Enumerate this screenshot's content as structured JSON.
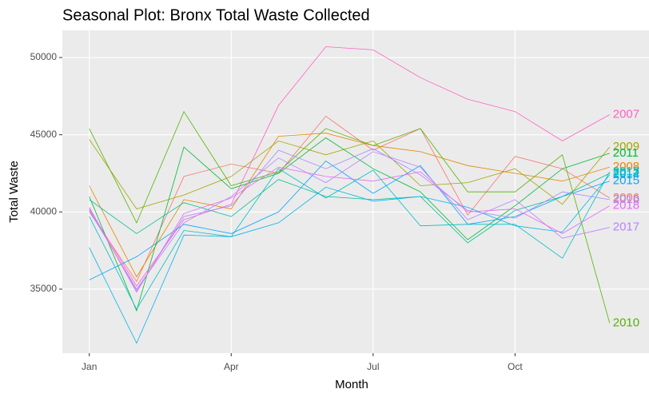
{
  "chart_data": {
    "type": "line",
    "title": "Seasonal Plot: Bronx Total Waste Collected",
    "x_label": "Month",
    "y_label": "Total Waste",
    "x": [
      1,
      2,
      3,
      4,
      5,
      6,
      7,
      8,
      9,
      10,
      11,
      12
    ],
    "xlim": [
      0.43,
      12.68
    ],
    "xticks": [
      {
        "value": 1,
        "label": "Jan"
      },
      {
        "value": 4,
        "label": "Apr"
      },
      {
        "value": 7,
        "label": "Jul"
      },
      {
        "value": 10,
        "label": "Oct"
      }
    ],
    "ylim": [
      30860,
      51760
    ],
    "yticks": [
      35000,
      40000,
      45000,
      50000
    ],
    "grid": true,
    "series": [
      {
        "name": "2006",
        "color": "#F8766D",
        "values": [
          40000,
          35500,
          42300,
          43100,
          42500,
          46200,
          44000,
          45400,
          39800,
          43600,
          42800,
          40900
        ]
      },
      {
        "name": "2007",
        "color": "#FF61C3",
        "values": [
          40200,
          35200,
          39500,
          40500,
          46900,
          50700,
          50500,
          48700,
          47300,
          46500,
          44600,
          46300
        ]
      },
      {
        "name": "2008",
        "color": "#E58700",
        "values": [
          41700,
          35800,
          40800,
          40200,
          44900,
          45100,
          44300,
          43900,
          43000,
          42500,
          42000,
          42900
        ]
      },
      {
        "name": "2009",
        "color": "#A3A500",
        "values": [
          44700,
          40200,
          41100,
          42300,
          44600,
          43700,
          44600,
          41700,
          41900,
          42800,
          40500,
          44200
        ]
      },
      {
        "name": "2010",
        "color": "#53B400",
        "values": [
          45400,
          39300,
          46500,
          41700,
          42600,
          45400,
          44300,
          45400,
          41300,
          41300,
          43700,
          32800
        ]
      },
      {
        "name": "2011",
        "color": "#00BA38",
        "values": [
          41000,
          33600,
          44200,
          41500,
          42500,
          44800,
          42800,
          41300,
          38200,
          40400,
          42800,
          43800
        ]
      },
      {
        "name": "2012",
        "color": "#00C094",
        "values": [
          40800,
          38600,
          40600,
          39700,
          42100,
          41000,
          40800,
          41000,
          38000,
          40100,
          41000,
          42500
        ]
      },
      {
        "name": "2013",
        "color": "#00BFC4",
        "values": [
          39700,
          33700,
          38800,
          38400,
          42800,
          40900,
          42700,
          39100,
          39200,
          39200,
          37000,
          42600
        ]
      },
      {
        "name": "2014",
        "color": "#00B6EB",
        "values": [
          37700,
          31500,
          38500,
          38400,
          39300,
          41600,
          40700,
          41000,
          40300,
          39100,
          38700,
          42400
        ]
      },
      {
        "name": "2015",
        "color": "#06A4FF",
        "values": [
          35600,
          37100,
          39200,
          38600,
          40000,
          43300,
          41200,
          43000,
          39200,
          39700,
          41000,
          42000
        ]
      },
      {
        "name": "2016",
        "color": "#A58AFF",
        "values": [
          40200,
          34900,
          39700,
          40400,
          44000,
          42800,
          44100,
          42400,
          40100,
          39600,
          41300,
          40800
        ]
      },
      {
        "name": "2017",
        "color": "#B983FF",
        "values": [
          40100,
          35000,
          39300,
          41000,
          43500,
          41900,
          43900,
          42900,
          39500,
          40800,
          38300,
          39000
        ]
      },
      {
        "name": "2018",
        "color": "#E76BF3",
        "values": [
          40300,
          34800,
          39900,
          40900,
          42900,
          42300,
          42000,
          42600,
          40000,
          40200,
          38600,
          40400
        ]
      }
    ]
  }
}
